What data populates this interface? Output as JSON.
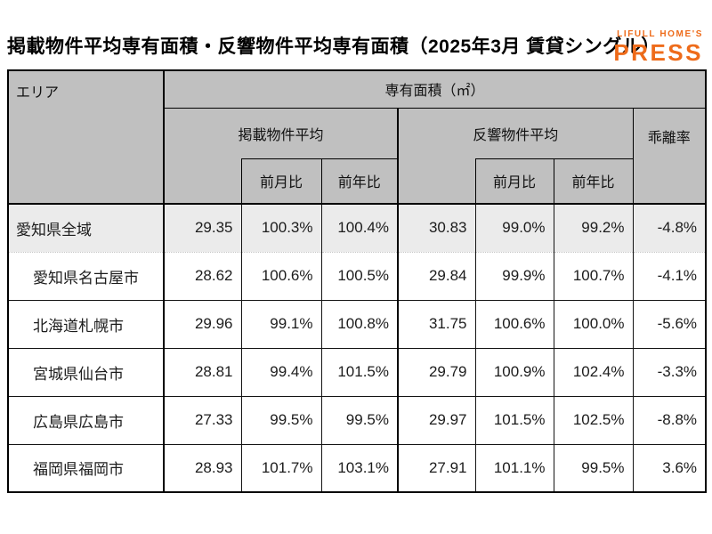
{
  "title": "掲載物件平均専有面積・反響物件平均専有面積（2025年3月 賃貸シングル）",
  "logo": {
    "top": "LIFULL HOME'S",
    "bottom": "PRESS",
    "color": "#EE6B1A"
  },
  "table": {
    "headers": {
      "area": "エリア",
      "main": "専有面積（㎡）",
      "listed_group": "掲載物件平均",
      "response_group": "反響物件平均",
      "deviation": "乖離率",
      "mom": "前月比",
      "yoy": "前年比"
    },
    "colors": {
      "header_bg": "#C0C0C0",
      "highlight_row_bg": "#EBEBEB",
      "row_bg": "#FFFFFF",
      "border": "#000000"
    },
    "rows": [
      {
        "area": "愛知県全域",
        "indent": false,
        "highlight": true,
        "listed_value": "29.35",
        "listed_mom": "100.3%",
        "listed_yoy": "100.4%",
        "response_value": "30.83",
        "response_mom": "99.0%",
        "response_yoy": "99.2%",
        "deviation": "-4.8%"
      },
      {
        "area": "愛知県名古屋市",
        "indent": true,
        "highlight": false,
        "listed_value": "28.62",
        "listed_mom": "100.6%",
        "listed_yoy": "100.5%",
        "response_value": "29.84",
        "response_mom": "99.9%",
        "response_yoy": "100.7%",
        "deviation": "-4.1%"
      },
      {
        "area": "北海道札幌市",
        "indent": true,
        "highlight": false,
        "listed_value": "29.96",
        "listed_mom": "99.1%",
        "listed_yoy": "100.8%",
        "response_value": "31.75",
        "response_mom": "100.6%",
        "response_yoy": "100.0%",
        "deviation": "-5.6%"
      },
      {
        "area": "宮城県仙台市",
        "indent": true,
        "highlight": false,
        "listed_value": "28.81",
        "listed_mom": "99.4%",
        "listed_yoy": "101.5%",
        "response_value": "29.79",
        "response_mom": "100.9%",
        "response_yoy": "102.4%",
        "deviation": "-3.3%"
      },
      {
        "area": "広島県広島市",
        "indent": true,
        "highlight": false,
        "listed_value": "27.33",
        "listed_mom": "99.5%",
        "listed_yoy": "99.5%",
        "response_value": "29.97",
        "response_mom": "101.5%",
        "response_yoy": "102.5%",
        "deviation": "-8.8%"
      },
      {
        "area": "福岡県福岡市",
        "indent": true,
        "highlight": false,
        "listed_value": "28.93",
        "listed_mom": "101.7%",
        "listed_yoy": "103.1%",
        "response_value": "27.91",
        "response_mom": "101.1%",
        "response_yoy": "99.5%",
        "deviation": "3.6%"
      }
    ]
  },
  "chart_data": {
    "type": "table",
    "title": "掲載物件平均専有面積・反響物件平均専有面積（2025年3月 賃貸シングル）",
    "unit": "㎡",
    "columns": [
      "エリア",
      "掲載物件平均",
      "掲載物件平均 前月比",
      "掲載物件平均 前年比",
      "反響物件平均",
      "反響物件平均 前月比",
      "反響物件平均 前年比",
      "乖離率"
    ],
    "rows": [
      [
        "愛知県全域",
        29.35,
        "100.3%",
        "100.4%",
        30.83,
        "99.0%",
        "99.2%",
        "-4.8%"
      ],
      [
        "愛知県名古屋市",
        28.62,
        "100.6%",
        "100.5%",
        29.84,
        "99.9%",
        "100.7%",
        "-4.1%"
      ],
      [
        "北海道札幌市",
        29.96,
        "99.1%",
        "100.8%",
        31.75,
        "100.6%",
        "100.0%",
        "-5.6%"
      ],
      [
        "宮城県仙台市",
        28.81,
        "99.4%",
        "101.5%",
        29.79,
        "100.9%",
        "102.4%",
        "-3.3%"
      ],
      [
        "広島県広島市",
        27.33,
        "99.5%",
        "99.5%",
        29.97,
        "101.5%",
        "102.5%",
        "-8.8%"
      ],
      [
        "福岡県福岡市",
        28.93,
        "101.7%",
        "103.1%",
        27.91,
        "101.1%",
        "99.5%",
        "3.6%"
      ]
    ]
  }
}
